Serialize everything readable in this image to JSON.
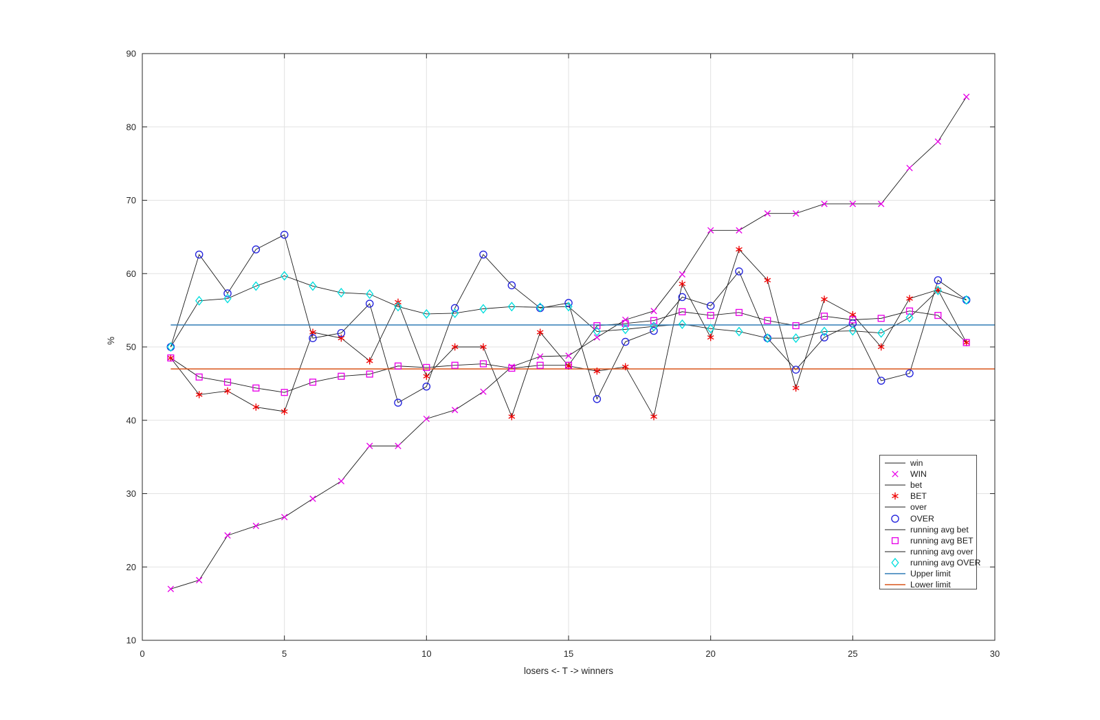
{
  "figure": {
    "background": "#ffffff",
    "axis_color": "#262626",
    "grid_color": "#e2e2e2",
    "data_line_color": "#1a1a1a"
  },
  "chart_data": {
    "type": "line",
    "title": "",
    "xlabel": "losers <- T -> winners",
    "ylabel": "%",
    "xlim": [
      0,
      30
    ],
    "ylim": [
      10,
      90
    ],
    "xticks": [
      0,
      5,
      10,
      15,
      20,
      25,
      30
    ],
    "yticks": [
      10,
      20,
      30,
      40,
      50,
      60,
      70,
      80,
      90
    ],
    "grid": true,
    "legend_position": "lower right",
    "x": [
      1,
      2,
      3,
      4,
      5,
      6,
      7,
      8,
      9,
      10,
      11,
      12,
      13,
      14,
      15,
      16,
      17,
      18,
      19,
      20,
      21,
      22,
      23,
      24,
      25,
      26,
      27,
      28,
      29
    ],
    "series": [
      {
        "name": "win",
        "style": "line",
        "color": "#1a1a1a",
        "marker": null,
        "values": [
          17.0,
          18.2,
          24.3,
          25.6,
          26.8,
          29.3,
          31.7,
          36.5,
          36.5,
          40.2,
          41.4,
          43.9,
          47.3,
          48.7,
          48.8,
          51.3,
          53.7,
          54.9,
          59.9,
          65.9,
          65.9,
          68.2,
          68.2,
          69.5,
          69.5,
          69.5,
          74.4,
          78.0,
          84.1
        ]
      },
      {
        "name": "WIN",
        "style": "marker",
        "color": "#e800e8",
        "marker": "x",
        "values": [
          17.0,
          18.2,
          24.3,
          25.6,
          26.8,
          29.3,
          31.7,
          36.5,
          36.5,
          40.2,
          41.4,
          43.9,
          47.3,
          48.7,
          48.8,
          51.3,
          53.7,
          54.9,
          59.9,
          65.9,
          65.9,
          68.2,
          68.2,
          69.5,
          69.5,
          69.5,
          74.4,
          78.0,
          84.1
        ]
      },
      {
        "name": "bet",
        "style": "line",
        "color": "#1a1a1a",
        "marker": null,
        "values": [
          48.5,
          43.5,
          44.0,
          41.8,
          41.2,
          52.0,
          51.2,
          48.1,
          56.1,
          46.0,
          50.0,
          50.0,
          40.5,
          52.0,
          47.4,
          46.7,
          47.3,
          40.5,
          58.6,
          51.3,
          63.3,
          59.1,
          44.4,
          56.5,
          54.4,
          50.0,
          56.6,
          57.8,
          50.6
        ]
      },
      {
        "name": "BET",
        "style": "marker",
        "color": "#ee0000",
        "marker": "asterisk",
        "values": [
          48.5,
          43.5,
          44.0,
          41.8,
          41.2,
          52.0,
          51.2,
          48.1,
          56.1,
          46.0,
          50.0,
          50.0,
          40.5,
          52.0,
          47.4,
          46.7,
          47.3,
          40.5,
          58.6,
          51.3,
          63.3,
          59.1,
          44.4,
          56.5,
          54.4,
          50.0,
          56.6,
          57.8,
          50.6
        ]
      },
      {
        "name": "over",
        "style": "line",
        "color": "#1a1a1a",
        "marker": null,
        "values": [
          50.0,
          62.6,
          57.3,
          63.3,
          65.3,
          51.2,
          51.9,
          55.9,
          42.4,
          44.6,
          55.3,
          62.6,
          58.4,
          55.3,
          56.0,
          42.9,
          50.7,
          52.2,
          56.8,
          55.6,
          60.3,
          51.2,
          46.9,
          51.3,
          53.2,
          45.4,
          46.4,
          59.1,
          56.4
        ]
      },
      {
        "name": "OVER",
        "style": "marker",
        "color": "#2222dd",
        "marker": "circle",
        "values": [
          50.0,
          62.6,
          57.3,
          63.3,
          65.3,
          51.2,
          51.9,
          55.9,
          42.4,
          44.6,
          55.3,
          62.6,
          58.4,
          55.3,
          56.0,
          42.9,
          50.7,
          52.2,
          56.8,
          55.6,
          60.3,
          51.2,
          46.9,
          51.3,
          53.2,
          45.4,
          46.4,
          59.1,
          56.4
        ]
      },
      {
        "name": "running avg bet",
        "style": "line",
        "color": "#1a1a1a",
        "marker": null,
        "values": [
          48.5,
          45.9,
          45.2,
          44.4,
          43.8,
          45.2,
          46.0,
          46.3,
          47.4,
          47.2,
          47.5,
          47.7,
          47.1,
          47.5,
          47.5,
          52.9,
          53.2,
          53.6,
          54.8,
          54.3,
          54.7,
          53.6,
          52.9,
          54.2,
          53.7,
          53.9,
          54.9,
          54.3,
          50.6
        ]
      },
      {
        "name": "running avg BET",
        "style": "marker",
        "color": "#e800e8",
        "marker": "square",
        "values": [
          48.5,
          45.9,
          45.2,
          44.4,
          43.8,
          45.2,
          46.0,
          46.3,
          47.4,
          47.2,
          47.5,
          47.7,
          47.1,
          47.5,
          47.5,
          52.9,
          53.2,
          53.6,
          54.8,
          54.3,
          54.7,
          53.6,
          52.9,
          54.2,
          53.7,
          53.9,
          54.9,
          54.3,
          50.6
        ]
      },
      {
        "name": "running avg over",
        "style": "line",
        "color": "#1a1a1a",
        "marker": null,
        "values": [
          50.0,
          56.3,
          56.6,
          58.3,
          59.7,
          58.3,
          57.4,
          57.2,
          55.5,
          54.5,
          54.6,
          55.2,
          55.5,
          55.4,
          55.5,
          52.1,
          52.4,
          52.8,
          53.1,
          52.5,
          52.1,
          51.2,
          51.2,
          52.1,
          52.2,
          51.9,
          54.0,
          57.7,
          56.4
        ]
      },
      {
        "name": "running avg OVER",
        "style": "marker",
        "color": "#00dede",
        "marker": "diamond",
        "values": [
          50.0,
          56.3,
          56.6,
          58.3,
          59.7,
          58.3,
          57.4,
          57.2,
          55.5,
          54.5,
          54.6,
          55.2,
          55.5,
          55.4,
          55.5,
          52.1,
          52.4,
          52.8,
          53.1,
          52.5,
          52.1,
          51.2,
          51.2,
          52.1,
          52.2,
          51.9,
          54.0,
          57.7,
          56.4
        ]
      },
      {
        "name": "Upper limit",
        "style": "hline",
        "color": "#2e7bb5",
        "marker": null,
        "value": 53,
        "x_range": [
          1,
          30
        ]
      },
      {
        "name": "Lower limit",
        "style": "hline",
        "color": "#d95319",
        "marker": null,
        "value": 47,
        "x_range": [
          1,
          30
        ]
      }
    ],
    "legend_labels": [
      "win",
      "WIN",
      "bet",
      "BET",
      "over",
      "OVER",
      "running avg bet",
      "running avg BET",
      "running avg over",
      "running avg OVER",
      "Upper limit",
      "Lower limit"
    ]
  }
}
